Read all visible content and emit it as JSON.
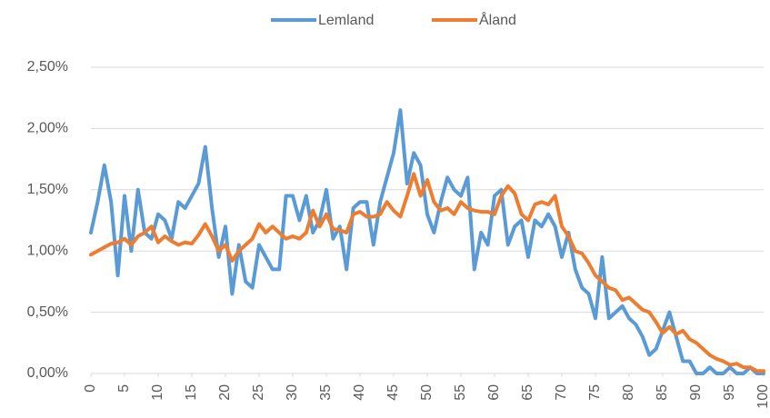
{
  "chart_data": {
    "type": "line",
    "x": [
      0,
      1,
      2,
      3,
      4,
      5,
      6,
      7,
      8,
      9,
      10,
      11,
      12,
      13,
      14,
      15,
      16,
      17,
      18,
      19,
      20,
      21,
      22,
      23,
      24,
      25,
      26,
      27,
      28,
      29,
      30,
      31,
      32,
      33,
      34,
      35,
      36,
      37,
      38,
      39,
      40,
      41,
      42,
      43,
      44,
      45,
      46,
      47,
      48,
      49,
      50,
      51,
      52,
      53,
      54,
      55,
      56,
      57,
      58,
      59,
      60,
      61,
      62,
      63,
      64,
      65,
      66,
      67,
      68,
      69,
      70,
      71,
      72,
      73,
      74,
      75,
      76,
      77,
      78,
      79,
      80,
      81,
      82,
      83,
      84,
      85,
      86,
      87,
      88,
      89,
      90,
      91,
      92,
      93,
      94,
      95,
      96,
      97,
      98,
      99,
      100
    ],
    "series": [
      {
        "name": "Lemland",
        "color": "#5b9bd5",
        "values": [
          1.15,
          1.4,
          1.7,
          1.4,
          0.8,
          1.45,
          1.0,
          1.5,
          1.15,
          1.1,
          1.3,
          1.25,
          1.1,
          1.4,
          1.35,
          1.45,
          1.55,
          1.85,
          1.35,
          0.95,
          1.2,
          0.65,
          1.05,
          0.75,
          0.7,
          1.05,
          0.95,
          0.85,
          0.85,
          1.45,
          1.45,
          1.25,
          1.45,
          1.15,
          1.25,
          1.5,
          1.1,
          1.2,
          0.85,
          1.35,
          1.4,
          1.4,
          1.05,
          1.4,
          1.6,
          1.8,
          2.15,
          1.55,
          1.8,
          1.7,
          1.3,
          1.15,
          1.4,
          1.6,
          1.5,
          1.45,
          1.6,
          0.85,
          1.15,
          1.05,
          1.45,
          1.5,
          1.05,
          1.2,
          1.25,
          0.95,
          1.25,
          1.2,
          1.3,
          1.2,
          0.95,
          1.15,
          0.85,
          0.7,
          0.65,
          0.45,
          0.95,
          0.45,
          0.5,
          0.55,
          0.45,
          0.4,
          0.3,
          0.15,
          0.2,
          0.35,
          0.5,
          0.3,
          0.1,
          0.1,
          0.0,
          0.0,
          0.05,
          0.0,
          0.0,
          0.05,
          0.0,
          0.0,
          0.05,
          0.0,
          0.0
        ]
      },
      {
        "name": "Åland",
        "color": "#ed7d31",
        "values": [
          0.97,
          1.0,
          1.03,
          1.06,
          1.07,
          1.1,
          1.05,
          1.12,
          1.15,
          1.2,
          1.07,
          1.12,
          1.08,
          1.05,
          1.07,
          1.06,
          1.13,
          1.22,
          1.12,
          1.0,
          1.05,
          0.92,
          1.0,
          1.05,
          1.1,
          1.22,
          1.15,
          1.2,
          1.15,
          1.1,
          1.12,
          1.1,
          1.15,
          1.33,
          1.2,
          1.3,
          1.18,
          1.17,
          1.15,
          1.3,
          1.32,
          1.28,
          1.28,
          1.3,
          1.4,
          1.33,
          1.28,
          1.45,
          1.63,
          1.45,
          1.58,
          1.4,
          1.33,
          1.35,
          1.3,
          1.4,
          1.35,
          1.33,
          1.32,
          1.32,
          1.3,
          1.45,
          1.53,
          1.47,
          1.3,
          1.25,
          1.38,
          1.4,
          1.38,
          1.45,
          1.2,
          1.12,
          1.0,
          0.98,
          0.9,
          0.8,
          0.75,
          0.7,
          0.68,
          0.6,
          0.62,
          0.57,
          0.52,
          0.5,
          0.42,
          0.33,
          0.38,
          0.32,
          0.35,
          0.28,
          0.25,
          0.2,
          0.15,
          0.12,
          0.1,
          0.07,
          0.08,
          0.05,
          0.05,
          0.02,
          0.02
        ]
      }
    ],
    "xlim": [
      0,
      100
    ],
    "xticks": [
      0,
      5,
      10,
      15,
      20,
      25,
      30,
      35,
      40,
      45,
      50,
      55,
      60,
      65,
      70,
      75,
      80,
      85,
      90,
      95,
      100
    ],
    "ylim": [
      0,
      2.5
    ],
    "yticks": [
      {
        "value": 0,
        "label": "0,00%"
      },
      {
        "value": 0.5,
        "label": "0,50%"
      },
      {
        "value": 1,
        "label": "1,00%"
      },
      {
        "value": 1.5,
        "label": "1,50%"
      },
      {
        "value": 2,
        "label": "2,00%"
      },
      {
        "value": 2.5,
        "label": "2,50%"
      }
    ],
    "grid": true,
    "legend": "top"
  }
}
